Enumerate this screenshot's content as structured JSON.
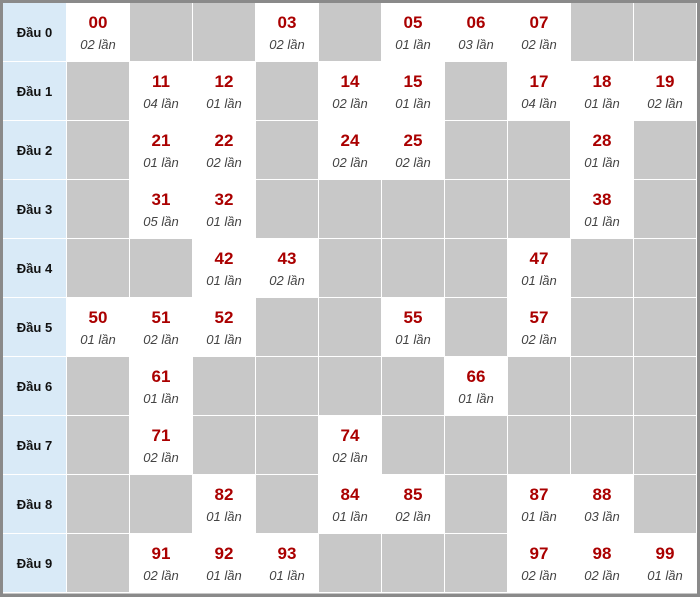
{
  "colors": {
    "header_bg": "#d9eaf7",
    "empty_bg": "#c8c8c8",
    "number": "#aa0000"
  },
  "rows": [
    {
      "label": "Đầu 0",
      "cells": [
        {
          "n": "00",
          "c": "02 lần"
        },
        {
          "n": "03",
          "c": "02 lần"
        },
        {
          "n": "05",
          "c": "01 lần"
        },
        {
          "n": "06",
          "c": "03 lần"
        },
        {
          "n": "07",
          "c": "02 lần"
        }
      ]
    },
    {
      "label": "Đầu 1",
      "cells": [
        {
          "n": "11",
          "c": "04 lần"
        },
        {
          "n": "12",
          "c": "01 lần"
        },
        {
          "n": "14",
          "c": "02 lần"
        },
        {
          "n": "15",
          "c": "01 lần"
        },
        {
          "n": "17",
          "c": "04 lần"
        },
        {
          "n": "18",
          "c": "01 lần"
        },
        {
          "n": "19",
          "c": "02 lần"
        }
      ]
    },
    {
      "label": "Đầu 2",
      "cells": [
        {
          "n": "21",
          "c": "01 lần"
        },
        {
          "n": "22",
          "c": "02 lần"
        },
        {
          "n": "24",
          "c": "02 lần"
        },
        {
          "n": "25",
          "c": "02 lần"
        },
        {
          "n": "28",
          "c": "01 lần"
        }
      ]
    },
    {
      "label": "Đầu 3",
      "cells": [
        {
          "n": "31",
          "c": "05 lần"
        },
        {
          "n": "32",
          "c": "01 lần"
        },
        {
          "n": "38",
          "c": "01 lần"
        }
      ]
    },
    {
      "label": "Đầu 4",
      "cells": [
        {
          "n": "42",
          "c": "01 lần"
        },
        {
          "n": "43",
          "c": "02 lần"
        },
        {
          "n": "47",
          "c": "01 lần"
        }
      ]
    },
    {
      "label": "Đầu 5",
      "cells": [
        {
          "n": "50",
          "c": "01 lần"
        },
        {
          "n": "51",
          "c": "02 lần"
        },
        {
          "n": "52",
          "c": "01 lần"
        },
        {
          "n": "55",
          "c": "01 lần"
        },
        {
          "n": "57",
          "c": "02 lần"
        }
      ]
    },
    {
      "label": "Đầu 6",
      "cells": [
        {
          "n": "61",
          "c": "01 lần"
        },
        {
          "n": "66",
          "c": "01 lần"
        }
      ]
    },
    {
      "label": "Đầu 7",
      "cells": [
        {
          "n": "71",
          "c": "02 lần"
        },
        {
          "n": "74",
          "c": "02 lần"
        }
      ]
    },
    {
      "label": "Đầu 8",
      "cells": [
        {
          "n": "82",
          "c": "01 lần"
        },
        {
          "n": "84",
          "c": "01 lần"
        },
        {
          "n": "85",
          "c": "02 lần"
        },
        {
          "n": "87",
          "c": "01 lần"
        },
        {
          "n": "88",
          "c": "03 lần"
        }
      ]
    },
    {
      "label": "Đầu 9",
      "cells": [
        {
          "n": "91",
          "c": "02 lần"
        },
        {
          "n": "92",
          "c": "01 lần"
        },
        {
          "n": "93",
          "c": "01 lần"
        },
        {
          "n": "97",
          "c": "02 lần"
        },
        {
          "n": "98",
          "c": "02 lần"
        },
        {
          "n": "99",
          "c": "01 lần"
        }
      ]
    }
  ]
}
